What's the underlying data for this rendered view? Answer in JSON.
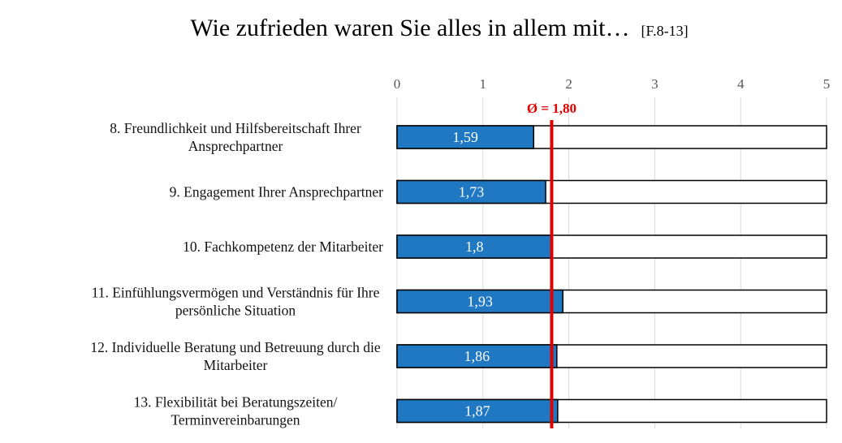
{
  "chart_data": {
    "type": "bar",
    "orientation": "horizontal",
    "title": "Wie zufrieden waren Sie alles in allem mit…",
    "subtitle": "[F.8-13]",
    "xlim": [
      0,
      5
    ],
    "ticks": [
      "0",
      "1",
      "2",
      "3",
      "4",
      "5"
    ],
    "tick_values": [
      0,
      1,
      2,
      3,
      4,
      5
    ],
    "grid": true,
    "categories": [
      [
        "8. Freundlichkeit und Hilfsbereitschaft Ihrer",
        "Ansprechpartner"
      ],
      [
        "9. Engagement Ihrer Ansprechpartner"
      ],
      [
        "10. Fachkompetenz der Mitarbeiter"
      ],
      [
        "11. Einfühlungsvermögen und Verständnis für Ihre",
        "persönliche Situation"
      ],
      [
        "12. Individuelle Beratung und Betreuung durch die",
        "Mitarbeiter"
      ],
      [
        "13. Flexibilität bei Beratungszeiten/",
        "Terminvereinbarungen"
      ]
    ],
    "values": [
      1.59,
      1.73,
      1.8,
      1.93,
      1.86,
      1.87
    ],
    "value_labels": [
      "1,59",
      "1,73",
      "1,8",
      "1,93",
      "1,86",
      "1,87"
    ],
    "average": 1.8,
    "average_label": "Ø = 1,80",
    "bar_color": "#1f78c1",
    "average_color": "#e00000"
  }
}
